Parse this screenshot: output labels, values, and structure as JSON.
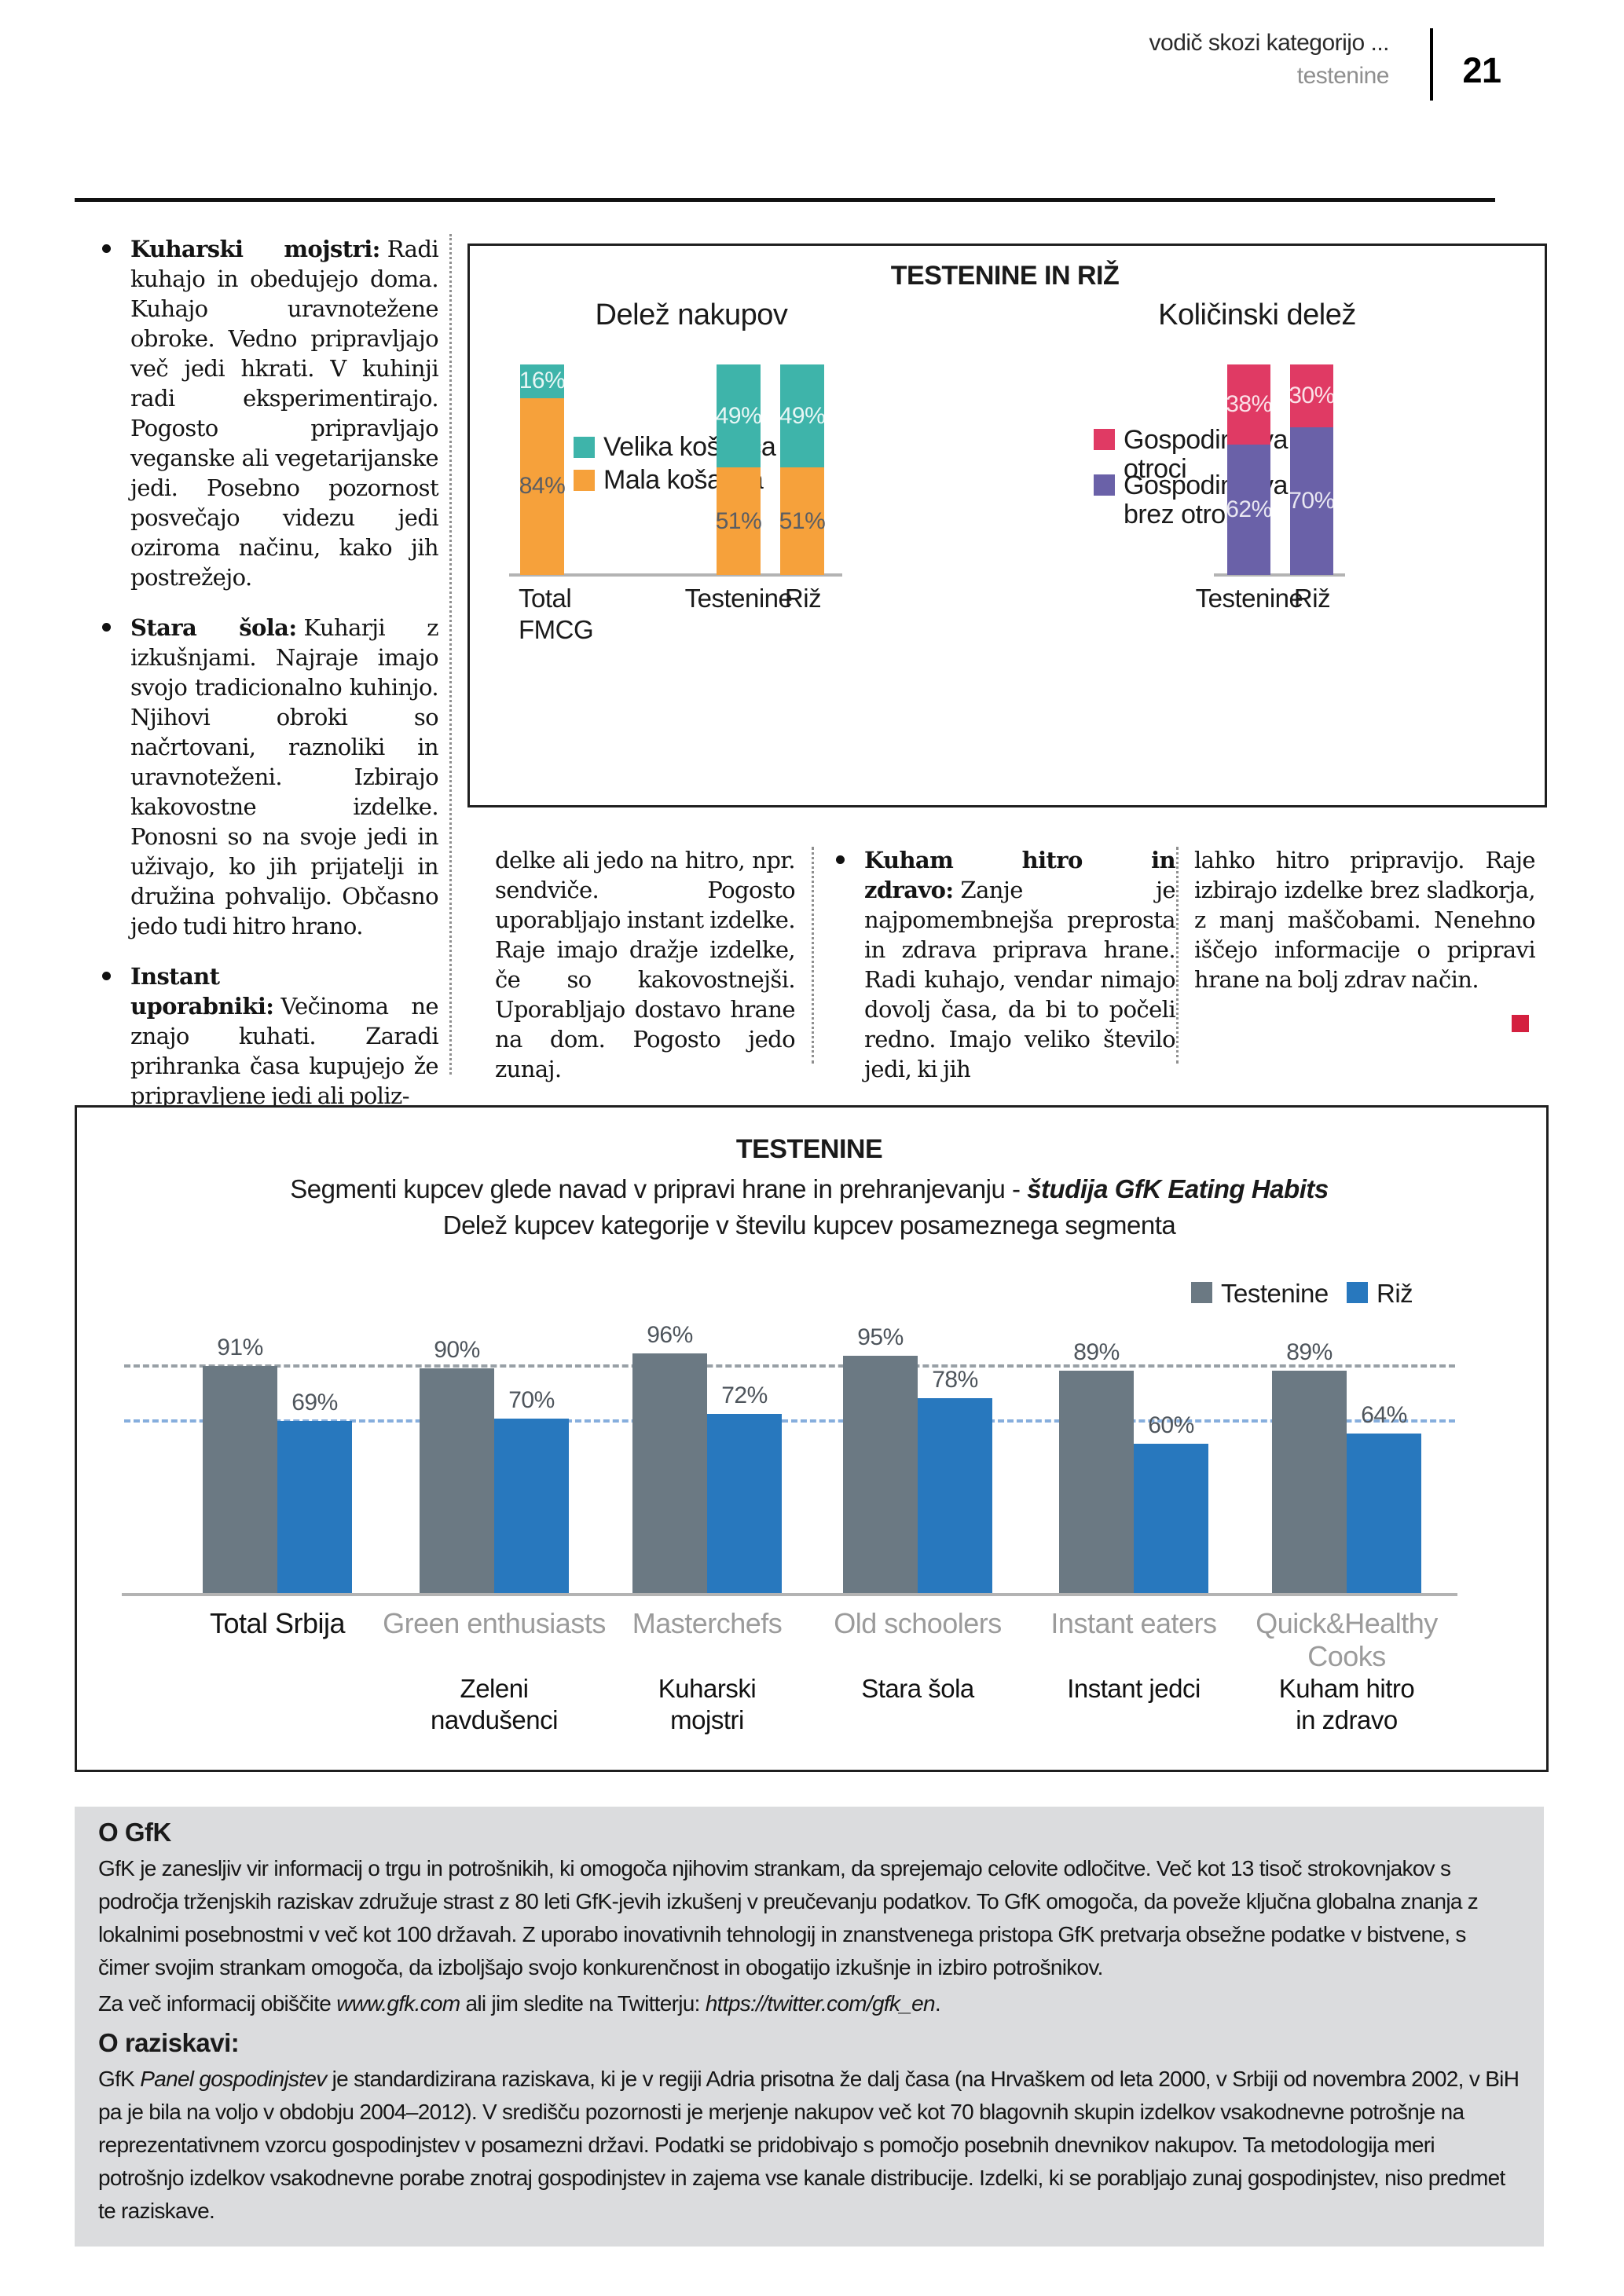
{
  "header": {
    "pretitle": "vodič skozi kategorijo ...",
    "title": "testenine",
    "page_number": "21"
  },
  "left_column": {
    "bullets": [
      {
        "lead": "Kuharski mojstri:",
        "text": "Radi kuhajo in obedujejo doma. Kuhajo uravnotežene obroke. Vedno pripravljajo več jedi hkrati. V kuhinji radi eksperimentirajo. Pogosto pripravljajo veganske ali vegetarijanske jedi. Posebno pozornost posvečajo videzu jedi oziroma načinu, kako jih postrežejo."
      },
      {
        "lead": "Stara šola:",
        "text": "Kuharji z izkušnjami. Najraje imajo svojo tradicionalno kuhinjo. Njihovi obroki so načrtovani, raznoliki in uravnoteženi. Izbirajo kakovostne izdelke. Ponosni so na svoje jedi in uživajo, ko jih prijatelji in družina pohvalijo. Občasno jedo tudi hitro hrano."
      },
      {
        "lead": "Instant uporabniki:",
        "text": "Večinoma ne znajo kuhati. Zaradi prihranka časa kupujejo že pripravljene jedi ali poliz-"
      }
    ]
  },
  "middle_section": {
    "continuation_1": "delke ali jedo na hitro, npr. sendviče. Pogosto uporabljajo instant izdelke. Raje imajo dražje izdelke, če so kakovostnejši. Uporabljajo dostavo hrane na dom. Pogosto jedo zunaj.",
    "bullet": {
      "lead": "Kuham hitro in zdravo:",
      "text": "Zanje je najpomembnejša preprosta in zdrava priprava hrane. Radi kuhajo, vendar nimajo dovolj časa, da bi to počeli redno. Imajo veliko število jedi, ki jih"
    },
    "continuation_2": "lahko hitro pripravijo. Raje izbirajo izdelke brez sladkorja, z manj maščobami. Nenehno iščejo informacije o pripravi hrane na bolj zdrav način."
  },
  "chart_data": [
    {
      "type": "bar",
      "subtype": "stacked",
      "title": "TESTENINE IN RIŽ",
      "unit": "%",
      "ylim": [
        0,
        100
      ],
      "panels": [
        {
          "title": "Delež nakupov",
          "categories": [
            "Total FMCG",
            "Testenine",
            "Riž"
          ],
          "series": [
            {
              "name": "Velika košarica",
              "color": "#3EB4AA",
              "values": [
                16,
                49,
                49
              ]
            },
            {
              "name": "Mala košarica",
              "color": "#F6A13B",
              "values": [
                84,
                51,
                51
              ]
            }
          ]
        },
        {
          "title": "Količinski delež",
          "categories": [
            "Testenine",
            "Riž"
          ],
          "series": [
            {
              "name": "Gospodinjstva z otroci",
              "color": "#E03A64",
              "values": [
                38,
                30
              ]
            },
            {
              "name": "Gospodinjstva brez otrok",
              "color": "#6A61A8",
              "values": [
                62,
                70
              ]
            }
          ]
        }
      ]
    },
    {
      "type": "bar",
      "subtype": "grouped",
      "title": "TESTENINE",
      "subtitle": "Segmenti kupcev glede navad v pripravi hrane in prehranjevanju - ",
      "subtitle_emphasis": "študija GfK Eating Habits",
      "subtitle2": "Delež kupcev kategorije v številu kupcev posameznega segmenta",
      "unit": "%",
      "ylim": [
        0,
        100
      ],
      "grid": "off",
      "legend_position": "top-right",
      "categories": [
        "Total Srbija",
        "Green enthusiasts",
        "Masterchefs",
        "Old schoolers",
        "Instant eaters",
        "Quick&Healthy\nCooks"
      ],
      "categories_sl": [
        "",
        "Zeleni\nnavdušenci",
        "Kuharski\nmojstri",
        "Stara šola",
        "Instant jedci",
        "Kuham hitro\nin zdravo"
      ],
      "series": [
        {
          "name": "Testenine",
          "color": "#6B7983",
          "values": [
            91,
            90,
            96,
            95,
            89,
            89
          ]
        },
        {
          "name": "Riž",
          "color": "#2878BE",
          "values": [
            69,
            70,
            72,
            78,
            60,
            64
          ]
        }
      ],
      "reference_lines": [
        {
          "value": 91,
          "color": "#98A0A6"
        },
        {
          "value": 69,
          "color": "#86AEDD"
        }
      ]
    }
  ],
  "about_gfk": {
    "heading": "O GfK",
    "body": "GfK je zanesljiv vir informacij o trgu in potrošnikih, ki omogoča njihovim strankam, da sprejemajo celovite odločitve. Več kot 13 tisoč strokovnjakov s področja trženjskih raziskav združuje strast z 80 leti GfK-jevih izkušenj v preučevanju podatkov. To GfK omogoča, da poveže ključna globalna znanja z lokalnimi posebnostmi v več kot 100 državah. Z uporabo inovativnih tehnologij in znanstvenega pristopa GfK pretvarja obsežne podatke v bistvene, s čimer svojim strankam omogoča, da izboljšajo svojo konkurenčnost in obogatijo izkušnje in izbiro potrošnikov.",
    "more_prefix": "Za več informacij obiščite ",
    "link1": "www.gfk.com",
    "more_middle": " ali jim sledite na Twitterju: ",
    "link2": "https://twitter.com/gfk_en",
    "more_suffix": "."
  },
  "about_study": {
    "heading": "O raziskavi:",
    "intro": "GfK ",
    "study_name": "Panel gospodinjstev",
    "body": " je standardizirana raziskava, ki je v regiji Adria prisotna že dalj časa (na Hrvaškem od leta 2000, v Srbiji od novembra 2002, v BiH pa je bila na voljo v obdobju 2004–2012). V središču pozornosti je merjenje nakupov več kot 70 blagovnih skupin izdelkov vsakodnevne potrošnje na reprezentativnem vzorcu gospodinjstev v posamezni državi. Podatki se pridobivajo s pomočjo posebnih dnevnikov nakupov. Ta metodologija meri potrošnjo izdelkov vsakodnevne porabe znotraj gospodinjstev in zajema vse kanale distribucije. Izdelki, ki se porabljajo zunaj gospodinjstev, niso predmet te raziskave."
  },
  "colors": {
    "article_end_marker": "#D4203F"
  }
}
